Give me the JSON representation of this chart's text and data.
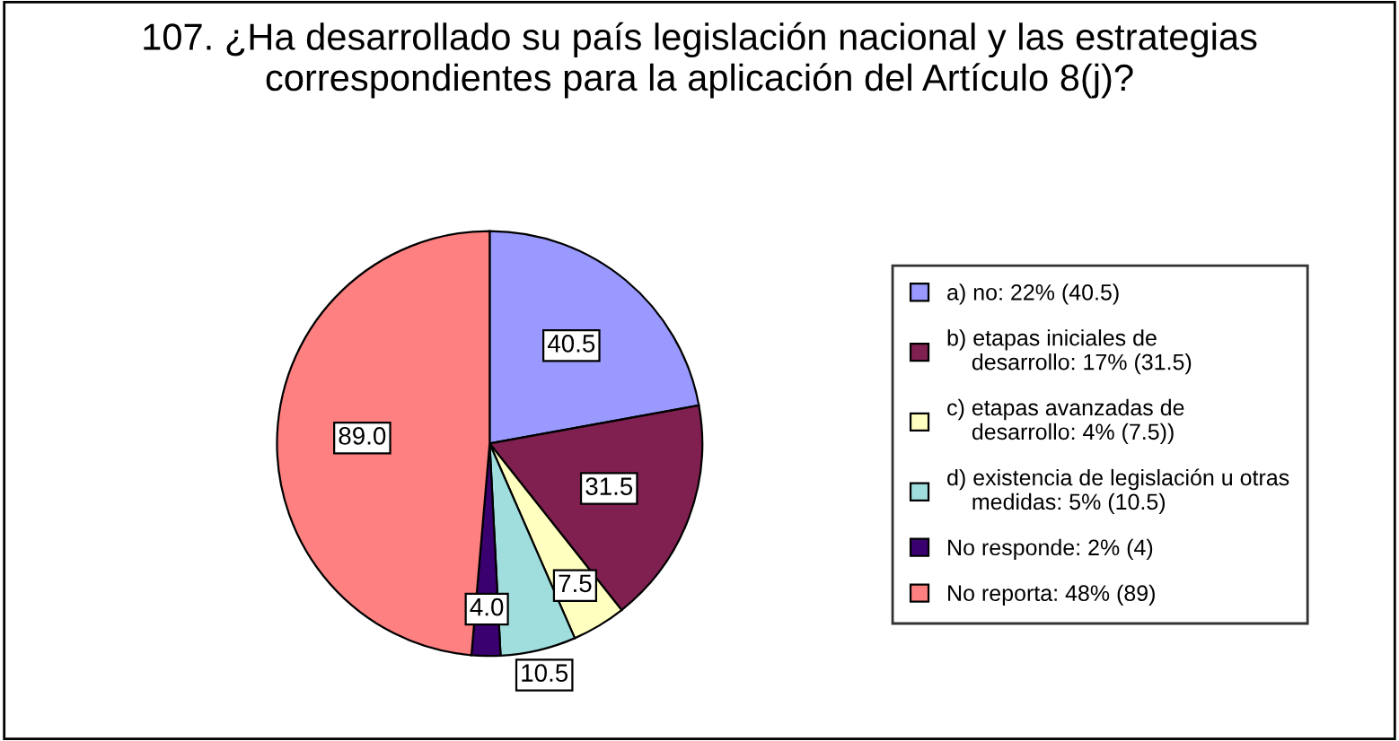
{
  "chart_data": {
    "type": "pie",
    "title": "107. ¿Ha desarrollado su país legislación nacional y las estrategias\ncorrespondientes para la aplicación del Artículo 8(j)?",
    "categories": [
      "a) no: 22% (40.5)",
      "b) etapas iniciales de\n    desarrollo: 17% (31.5)",
      "c) etapas avanzadas de\n    desarrollo: 4% (7.5))",
      "d) existencia de legislación u otras\n    medidas: 5% (10.5)",
      "No responde: 2% (4)",
      "No reporta: 48% (89)"
    ],
    "values": [
      40.5,
      31.5,
      7.5,
      10.5,
      4.0,
      89.0
    ],
    "value_labels": [
      "40.5",
      "31.5",
      "7.5",
      "10.5",
      "4.0",
      "89.0"
    ],
    "colors": [
      "#9999ff",
      "#802050",
      "#ffffc0",
      "#a0dede",
      "#3a0070",
      "#ff8080"
    ],
    "legend": "right"
  }
}
